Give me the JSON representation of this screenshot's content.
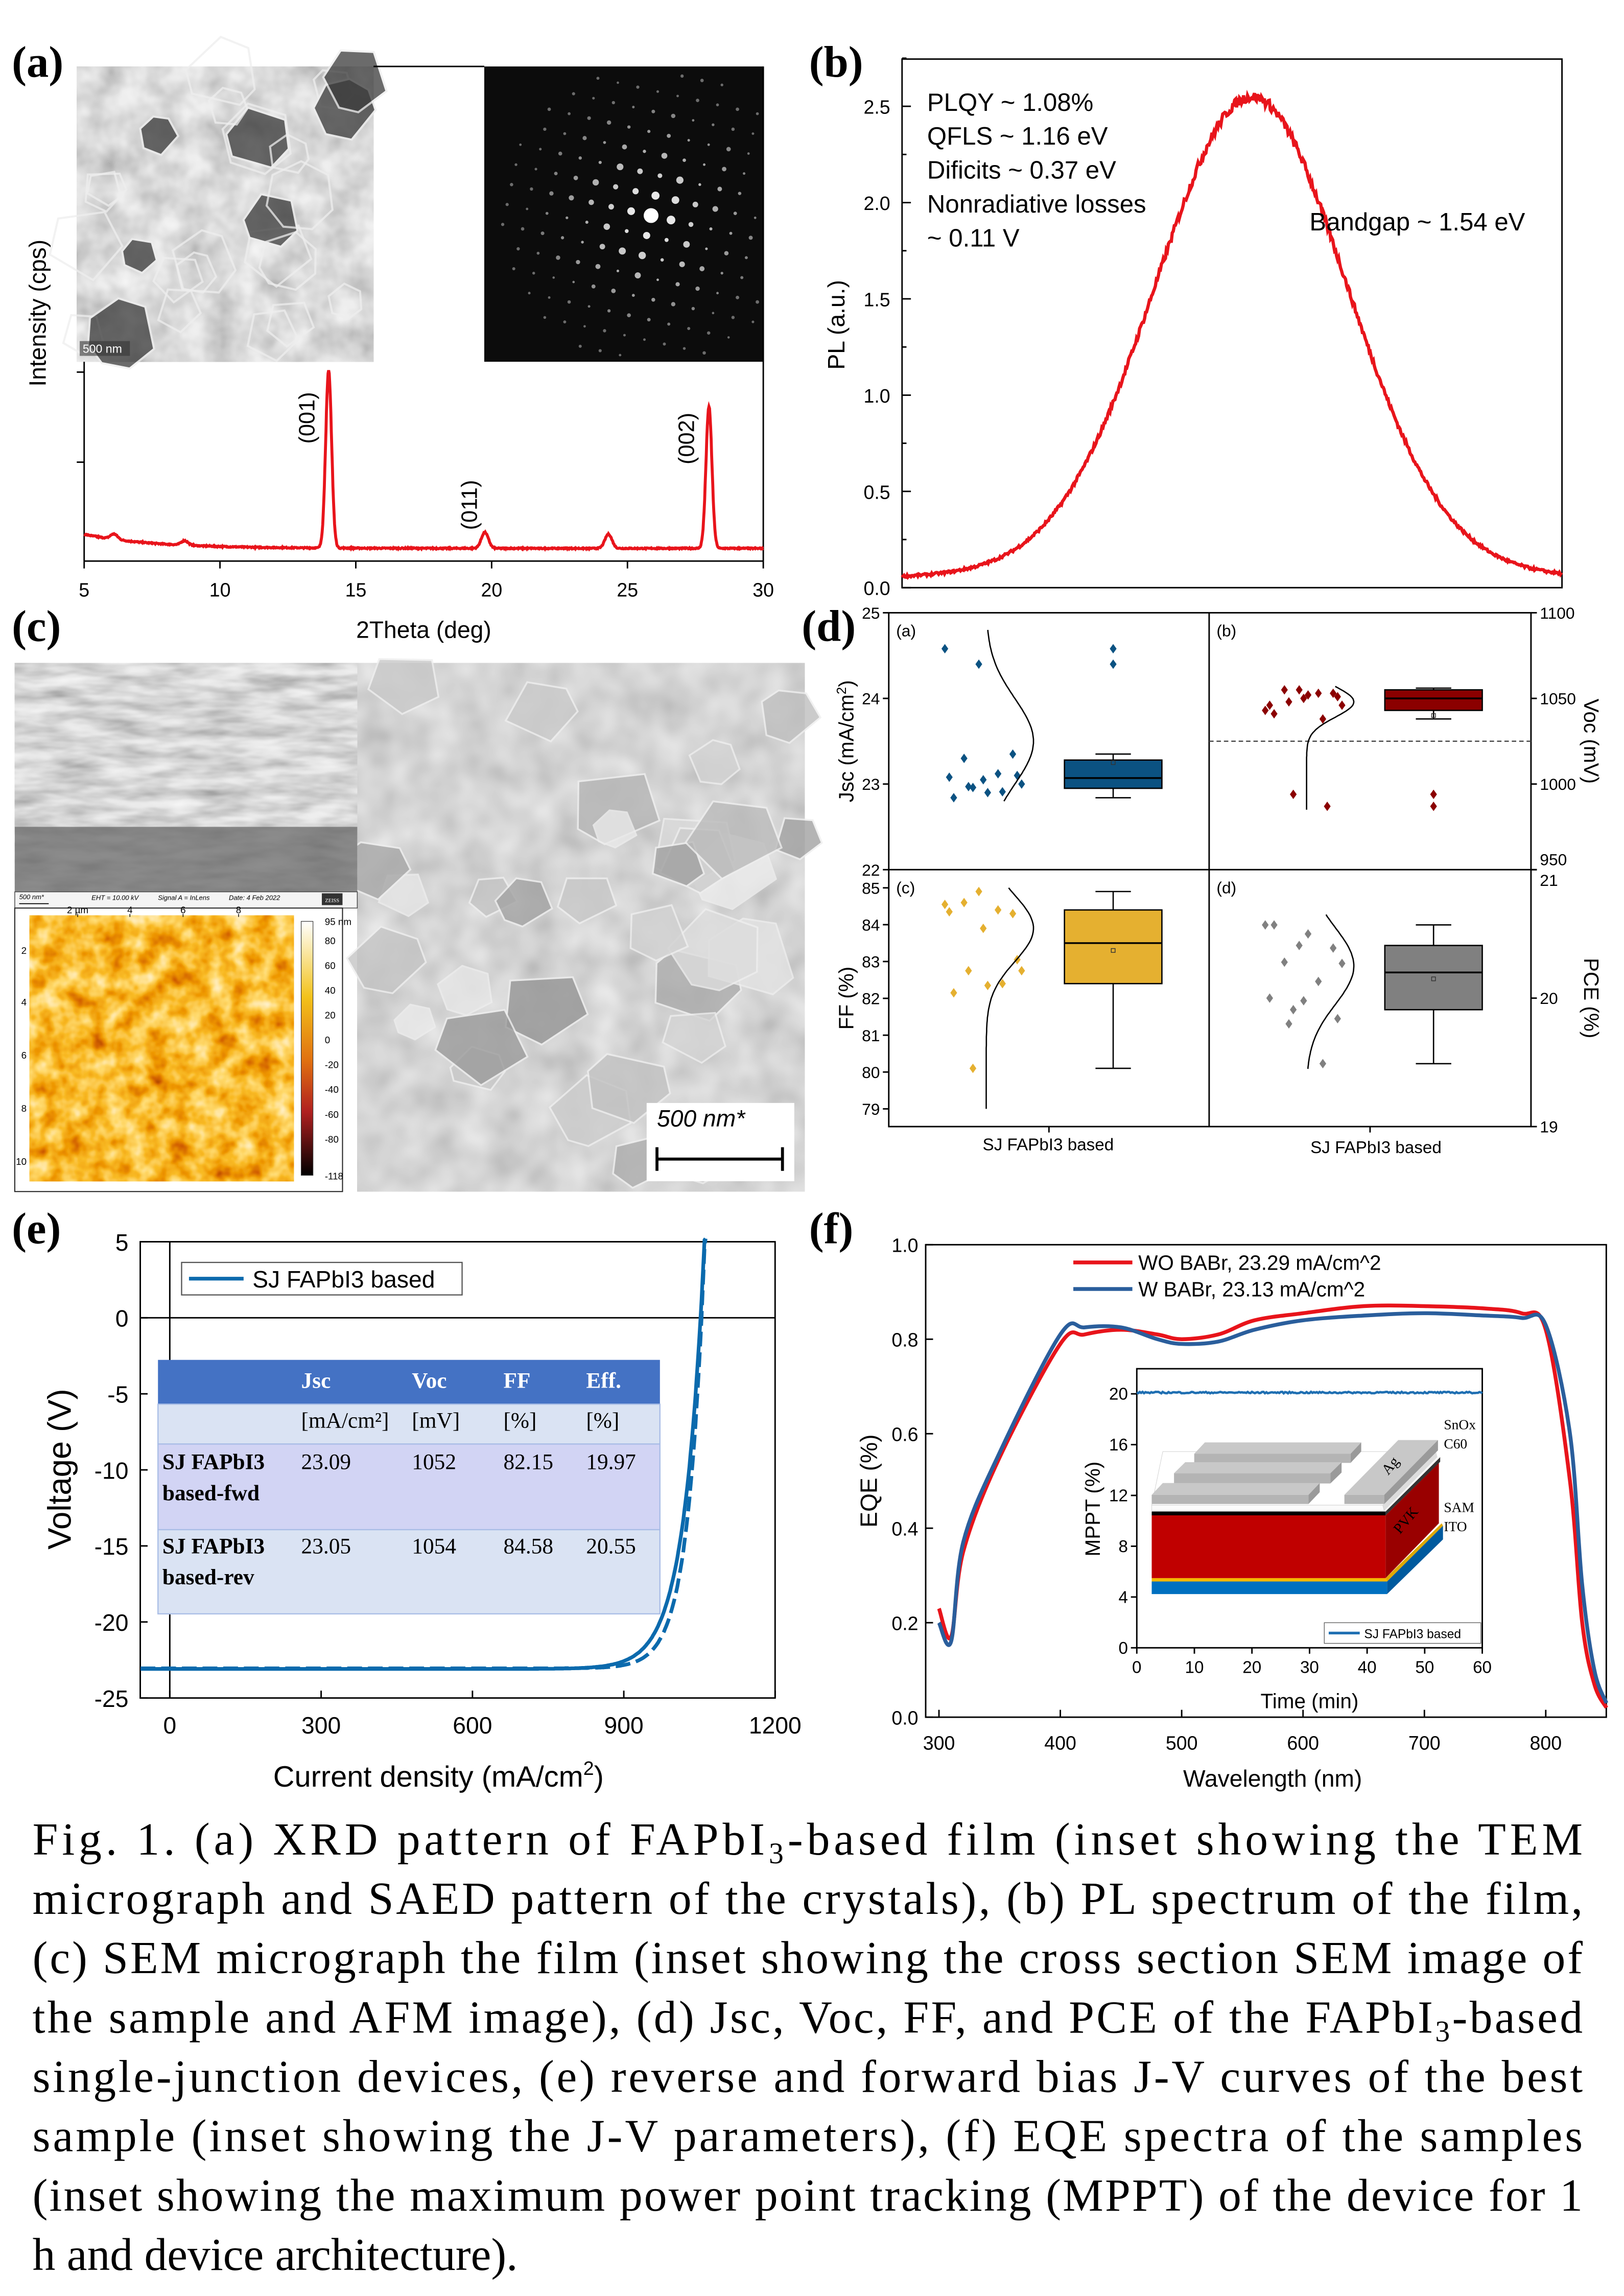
{
  "figure": {
    "panel_labels": [
      "(a)",
      "(b)",
      "(c)",
      "(d)",
      "(e)",
      "(f)"
    ]
  },
  "caption": {
    "lines": [
      [
        "Fig. 1. (a) XRD pattern of FAPbI",
        "3",
        "-based film (inset showing the TEM"
      ],
      [
        "micrograph and SAED pattern of the crystals), (b) PL spectrum of the film,"
      ],
      [
        "(c) SEM micrograph the film (inset showing the cross section SEM image of"
      ],
      [
        "the sample and AFM image), (d) Jsc, Voc, FF, and PCE of the FAPbI",
        "3",
        "-based"
      ],
      [
        "single-junction devices, (e) reverse and forward bias J-V curves of the best"
      ],
      [
        "sample (inset showing the J-V parameters), (f) EQE spectra of the samples"
      ],
      [
        "(inset showing the maximum power point tracking (MPPT) of the device for 1"
      ],
      [
        "h and device architecture)."
      ]
    ]
  },
  "images": {
    "tem_scale": "500 nm",
    "sem_cross_info": [
      "500 nm*",
      "EHT = 10.00 kV",
      "Signal A = InLens",
      "Date: 4 Feb 2022",
      "ZEISS"
    ],
    "afm_x_ticks": [
      "2 µm",
      "4",
      "6",
      "8"
    ],
    "afm_y_ticks": [
      "2",
      "4",
      "6",
      "8",
      "10"
    ],
    "afm_colorbar_ticks": [
      "95 nm",
      "80",
      "60",
      "40",
      "20",
      "0",
      "-20",
      "-40",
      "-60",
      "-80",
      "-118"
    ],
    "sem_top_scale": "500 nm*"
  },
  "chart_data": [
    {
      "id": "xrd",
      "type": "line",
      "xlabel": "2Theta (deg)",
      "ylabel": "Intensity (cps)",
      "xlim": [
        5,
        30
      ],
      "x_ticks": [
        5,
        10,
        15,
        20,
        25,
        30
      ],
      "color": "#e8141b",
      "peaks": [
        {
          "two_theta": 6.1,
          "rel": 0.03,
          "label": ""
        },
        {
          "two_theta": 8.7,
          "rel": 0.025,
          "label": ""
        },
        {
          "two_theta": 14.0,
          "rel": 1.0,
          "label": "(001)"
        },
        {
          "two_theta": 19.75,
          "rel": 0.09,
          "label": "(011)"
        },
        {
          "two_theta": 24.3,
          "rel": 0.08,
          "label": ""
        },
        {
          "two_theta": 28.0,
          "rel": 0.8,
          "label": "(002)"
        }
      ]
    },
    {
      "id": "pl",
      "type": "line",
      "ylabel": "PL (a.u.)",
      "ylim": [
        0,
        2.7
      ],
      "y_ticks": [
        "0.0",
        "0.5",
        "1.0",
        "1.5",
        "2.0",
        "2.5"
      ],
      "x_range": [
        0,
        100
      ],
      "peak_x": 53,
      "peak_value": 2.55,
      "sigma_left": 14.8,
      "sigma_right": 14.6,
      "baseline": 0.03,
      "color": "#e8141b",
      "annotations": [
        "PLQY ~ 1.08%",
        "QFLS ~ 1.16 eV",
        "Dificits ~ 0.37 eV",
        "Nonradiative losses",
        "~ 0.11 V"
      ],
      "bandgap_label": "Bandgap ~ 1.54 eV"
    },
    {
      "id": "stats",
      "type": "box",
      "category": "SJ FAPbI3 based",
      "panels": [
        {
          "tag": "(a)",
          "metric": "Jsc",
          "axis_label": "Jsc (mA/cm",
          "axis_label_sup": "2",
          "axis_label_end": ")",
          "ylim": [
            22,
            25
          ],
          "ticks": [
            "22",
            "23",
            "24",
            "25"
          ],
          "color": "#0b5282",
          "points": [
            24.58,
            24.4,
            23.35,
            23.3,
            23.12,
            23.08,
            23.05,
            23.1,
            22.97,
            22.91,
            22.84,
            22.9,
            23.0,
            22.96
          ],
          "box": {
            "q1": 22.95,
            "median": 23.07,
            "q3": 23.28,
            "whisker_low": 22.84,
            "whisker_high": 23.35,
            "mean": 23.25
          },
          "outliers": [
            24.58,
            24.4
          ],
          "dist": {
            "mean": 23.5,
            "sd": 0.5,
            "from": 22.8,
            "to": 24.8
          }
        },
        {
          "tag": "(b)",
          "metric": "Voc",
          "axis_label": "Voc (mV)",
          "ylim": [
            950,
            1100
          ],
          "ticks": [
            "950",
            "1000",
            "1050",
            "1100"
          ],
          "color": "#8b0000",
          "points": [
            1043,
            1055,
            1053,
            1055,
            1053,
            1046,
            1050,
            1051,
            1048,
            1038,
            1041,
            1052,
            1046,
            994,
            987
          ],
          "box": {
            "q1": 1043,
            "median": 1050,
            "q3": 1055,
            "whisker_low": 1038,
            "whisker_high": 1056,
            "mean": 1040
          },
          "outliers": [
            994,
            987
          ],
          "reference_line": 1025,
          "dist": {
            "mean": 1048,
            "sd": 9,
            "from": 985,
            "to": 1057
          }
        },
        {
          "tag": "(c)",
          "metric": "FF",
          "axis_label": "FF (%)",
          "ylim": [
            78.5,
            85.5
          ],
          "ticks": [
            "79",
            "80",
            "81",
            "82",
            "83",
            "84",
            "85"
          ],
          "color": "#e5b030",
          "points": [
            84.55,
            84.9,
            84.3,
            84.6,
            84.4,
            84.35,
            83.9,
            83.05,
            82.75,
            82.4,
            82.15,
            82.35,
            82.75,
            80.1
          ],
          "box": {
            "q1": 82.4,
            "median": 83.5,
            "q3": 84.4,
            "whisker_low": 80.1,
            "whisker_high": 84.9,
            "mean": 83.3
          },
          "outliers": [],
          "dist": {
            "mean": 83.9,
            "sd": 0.9,
            "from": 79.0,
            "to": 85.0
          }
        },
        {
          "tag": "(d)",
          "metric": "PCE",
          "axis_label": "PCE (%)",
          "ylim": [
            19,
            21
          ],
          "ticks": [
            "19",
            "20",
            "21"
          ],
          "color": "#808080",
          "points": [
            20.57,
            20.41,
            20.39,
            20.28,
            20.13,
            20.0,
            19.98,
            19.84,
            19.8,
            19.49,
            20.57,
            20.5,
            20.27,
            19.91
          ],
          "box": {
            "q1": 19.91,
            "median": 20.2,
            "q3": 20.41,
            "whisker_low": 19.49,
            "whisker_high": 20.57,
            "mean": 20.15
          },
          "outliers": [],
          "dist": {
            "mean": 20.25,
            "sd": 0.3,
            "from": 19.45,
            "to": 20.65
          }
        }
      ]
    },
    {
      "id": "jv",
      "type": "line",
      "xlabel": "Current density (mA/cm",
      "xlabel_sup": "2",
      "xlabel_end": ")",
      "ylabel": "Voltage (V)",
      "xlim": [
        -60,
        1200
      ],
      "ylim": [
        -25,
        5
      ],
      "x_ticks": [
        "0",
        "300",
        "600",
        "900",
        "1200"
      ],
      "y_ticks": [
        "5",
        "0",
        "-5",
        "-10",
        "-15",
        "-20",
        "-25"
      ],
      "legend": "SJ FAPbI3 based",
      "color": "#0b6aad",
      "series": [
        {
          "name": "fwd",
          "jsc": 23.09,
          "voc": 1052,
          "style": "solid"
        },
        {
          "name": "rev",
          "jsc": 23.05,
          "voc": 1054,
          "style": "dashed"
        }
      ],
      "table": {
        "headers": [
          "",
          "Jsc",
          "Voc",
          "FF",
          "Eff."
        ],
        "units": [
          "",
          "[mA/cm²]",
          "[mV]",
          "[%]",
          "[%]"
        ],
        "rows": [
          {
            "label": [
              "SJ FAPbI3",
              "based-fwd"
            ],
            "values": [
              "23.09",
              "1052",
              "82.15",
              "19.97"
            ]
          },
          {
            "label": [
              "SJ FAPbI3",
              "based-rev"
            ],
            "values": [
              "23.05",
              "1054",
              "84.58",
              "20.55"
            ]
          }
        ]
      }
    },
    {
      "id": "eqe",
      "type": "line",
      "xlabel": "Wavelength (nm)",
      "ylabel": "EQE (%)",
      "xlim": [
        300,
        850
      ],
      "ylim": [
        0,
        1.0
      ],
      "x_ticks": [
        "300",
        "400",
        "500",
        "600",
        "700",
        "800"
      ],
      "y_ticks": [
        "0.0",
        "0.2",
        "0.4",
        "0.6",
        "0.8",
        "1.0"
      ],
      "series": [
        {
          "name": "WO BABr, 23.29 mA/cm^2",
          "color": "#e8141b",
          "x": [
            300,
            310,
            320,
            350,
            400,
            420,
            450,
            480,
            500,
            530,
            560,
            600,
            650,
            700,
            750,
            780,
            800,
            820,
            830,
            840,
            850
          ],
          "y": [
            0.23,
            0.17,
            0.35,
            0.55,
            0.79,
            0.81,
            0.82,
            0.81,
            0.8,
            0.81,
            0.84,
            0.855,
            0.87,
            0.87,
            0.865,
            0.855,
            0.82,
            0.5,
            0.2,
            0.07,
            0.02
          ]
        },
        {
          "name": "W BABr, 23.13 mA/cm^2",
          "color": "#2a5e9c",
          "x": [
            300,
            310,
            320,
            350,
            400,
            420,
            450,
            480,
            500,
            530,
            560,
            600,
            650,
            700,
            750,
            780,
            800,
            820,
            830,
            840,
            850
          ],
          "y": [
            0.2,
            0.16,
            0.37,
            0.56,
            0.81,
            0.825,
            0.825,
            0.8,
            0.79,
            0.795,
            0.82,
            0.84,
            0.85,
            0.855,
            0.85,
            0.845,
            0.83,
            0.6,
            0.28,
            0.1,
            0.03
          ]
        }
      ]
    },
    {
      "id": "mppt",
      "type": "line",
      "xlabel": "Time (min)",
      "ylabel": "MPPT (%)",
      "xlim": [
        0,
        60
      ],
      "ylim": [
        0,
        22
      ],
      "x_ticks": [
        "0",
        "10",
        "20",
        "30",
        "40",
        "50",
        "60"
      ],
      "y_ticks": [
        "0",
        "4",
        "8",
        "12",
        "16",
        "20"
      ],
      "legend": "SJ FAPbI3 based",
      "color": "#1f6fb2",
      "value": 20.1,
      "device_layers": [
        "SnOx",
        "C60",
        "Ag",
        "PVK",
        "SAM",
        "ITO"
      ]
    }
  ]
}
